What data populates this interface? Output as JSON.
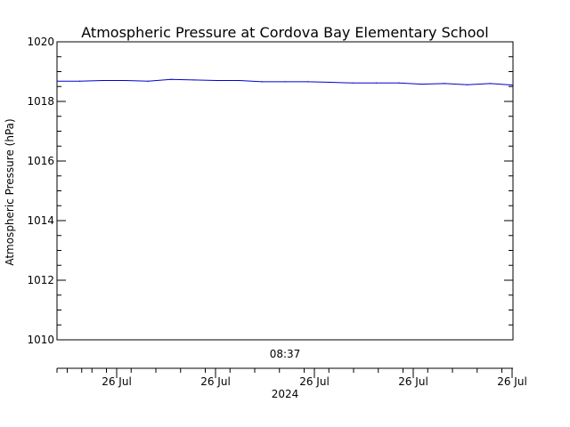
{
  "chart_data": {
    "type": "line",
    "title": "Atmospheric Pressure at Cordova Bay Elementary School",
    "ylabel": "Atmospheric Pressure (hPa)",
    "ylim": [
      1010,
      1020
    ],
    "yticks": [
      "1010",
      "1012",
      "1014",
      "1016",
      "1018",
      "1020"
    ],
    "xlim": [
      0,
      1
    ],
    "time_label": "08:37",
    "xticks": [
      "26 Jul",
      "26 Jul",
      "26 Jul",
      "26 Jul",
      "26 Jul"
    ],
    "year_label": "2024",
    "grid": false,
    "series": [
      {
        "color": "#0000cc",
        "x": [
          0,
          0.05,
          0.1,
          0.15,
          0.2,
          0.25,
          0.3,
          0.35,
          0.4,
          0.45,
          0.5,
          0.55,
          0.6,
          0.65,
          0.7,
          0.75,
          0.8,
          0.85,
          0.9,
          0.95,
          1.0
        ],
        "y": [
          1018.68,
          1018.68,
          1018.7,
          1018.7,
          1018.68,
          1018.74,
          1018.72,
          1018.7,
          1018.7,
          1018.66,
          1018.66,
          1018.66,
          1018.64,
          1018.62,
          1018.62,
          1018.62,
          1018.58,
          1018.6,
          1018.56,
          1018.6,
          1018.55
        ]
      }
    ]
  }
}
